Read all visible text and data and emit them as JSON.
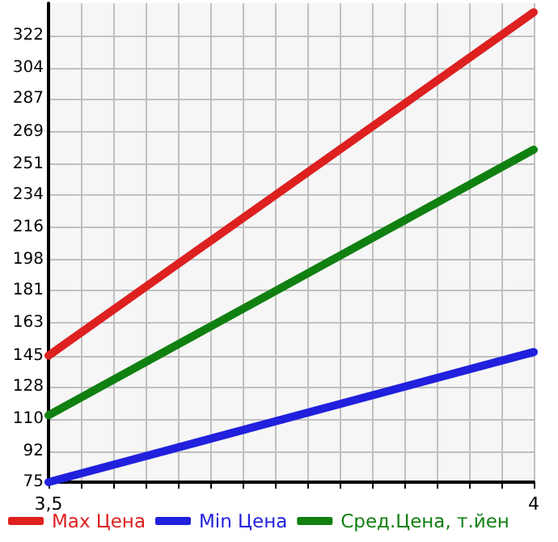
{
  "chart_data": {
    "type": "line",
    "x": [
      3.5,
      4
    ],
    "series": [
      {
        "name": "Max Цена",
        "color": "#dd2020",
        "values": [
          145,
          335
        ]
      },
      {
        "name": "Min Цена",
        "color": "#2020dd",
        "values": [
          75,
          147
        ]
      },
      {
        "name": "Сред.Цена, т.йен",
        "color": "#108010",
        "values": [
          112,
          259
        ]
      }
    ],
    "xlim": [
      3.5,
      4
    ],
    "xticks": [
      {
        "value": 3.5,
        "label": "3,5"
      },
      {
        "value": 3.5333,
        "label": null
      },
      {
        "value": 3.5667,
        "label": null
      },
      {
        "value": 3.6,
        "label": null
      },
      {
        "value": 3.6333,
        "label": null
      },
      {
        "value": 3.6667,
        "label": null
      },
      {
        "value": 3.7,
        "label": null
      },
      {
        "value": 3.7333,
        "label": null
      },
      {
        "value": 3.7667,
        "label": null
      },
      {
        "value": 3.8,
        "label": null
      },
      {
        "value": 3.8333,
        "label": null
      },
      {
        "value": 3.8667,
        "label": null
      },
      {
        "value": 3.9,
        "label": null
      },
      {
        "value": 3.9333,
        "label": null
      },
      {
        "value": 3.9667,
        "label": null
      },
      {
        "value": 4,
        "label": "4"
      }
    ],
    "ylim": [
      75,
      340
    ],
    "yticks": [
      75,
      92,
      110,
      128,
      145,
      163,
      181,
      198,
      216,
      234,
      251,
      269,
      287,
      304,
      322
    ],
    "grid": true,
    "legend": "bottom",
    "marker": "none",
    "line_style": "solid"
  }
}
